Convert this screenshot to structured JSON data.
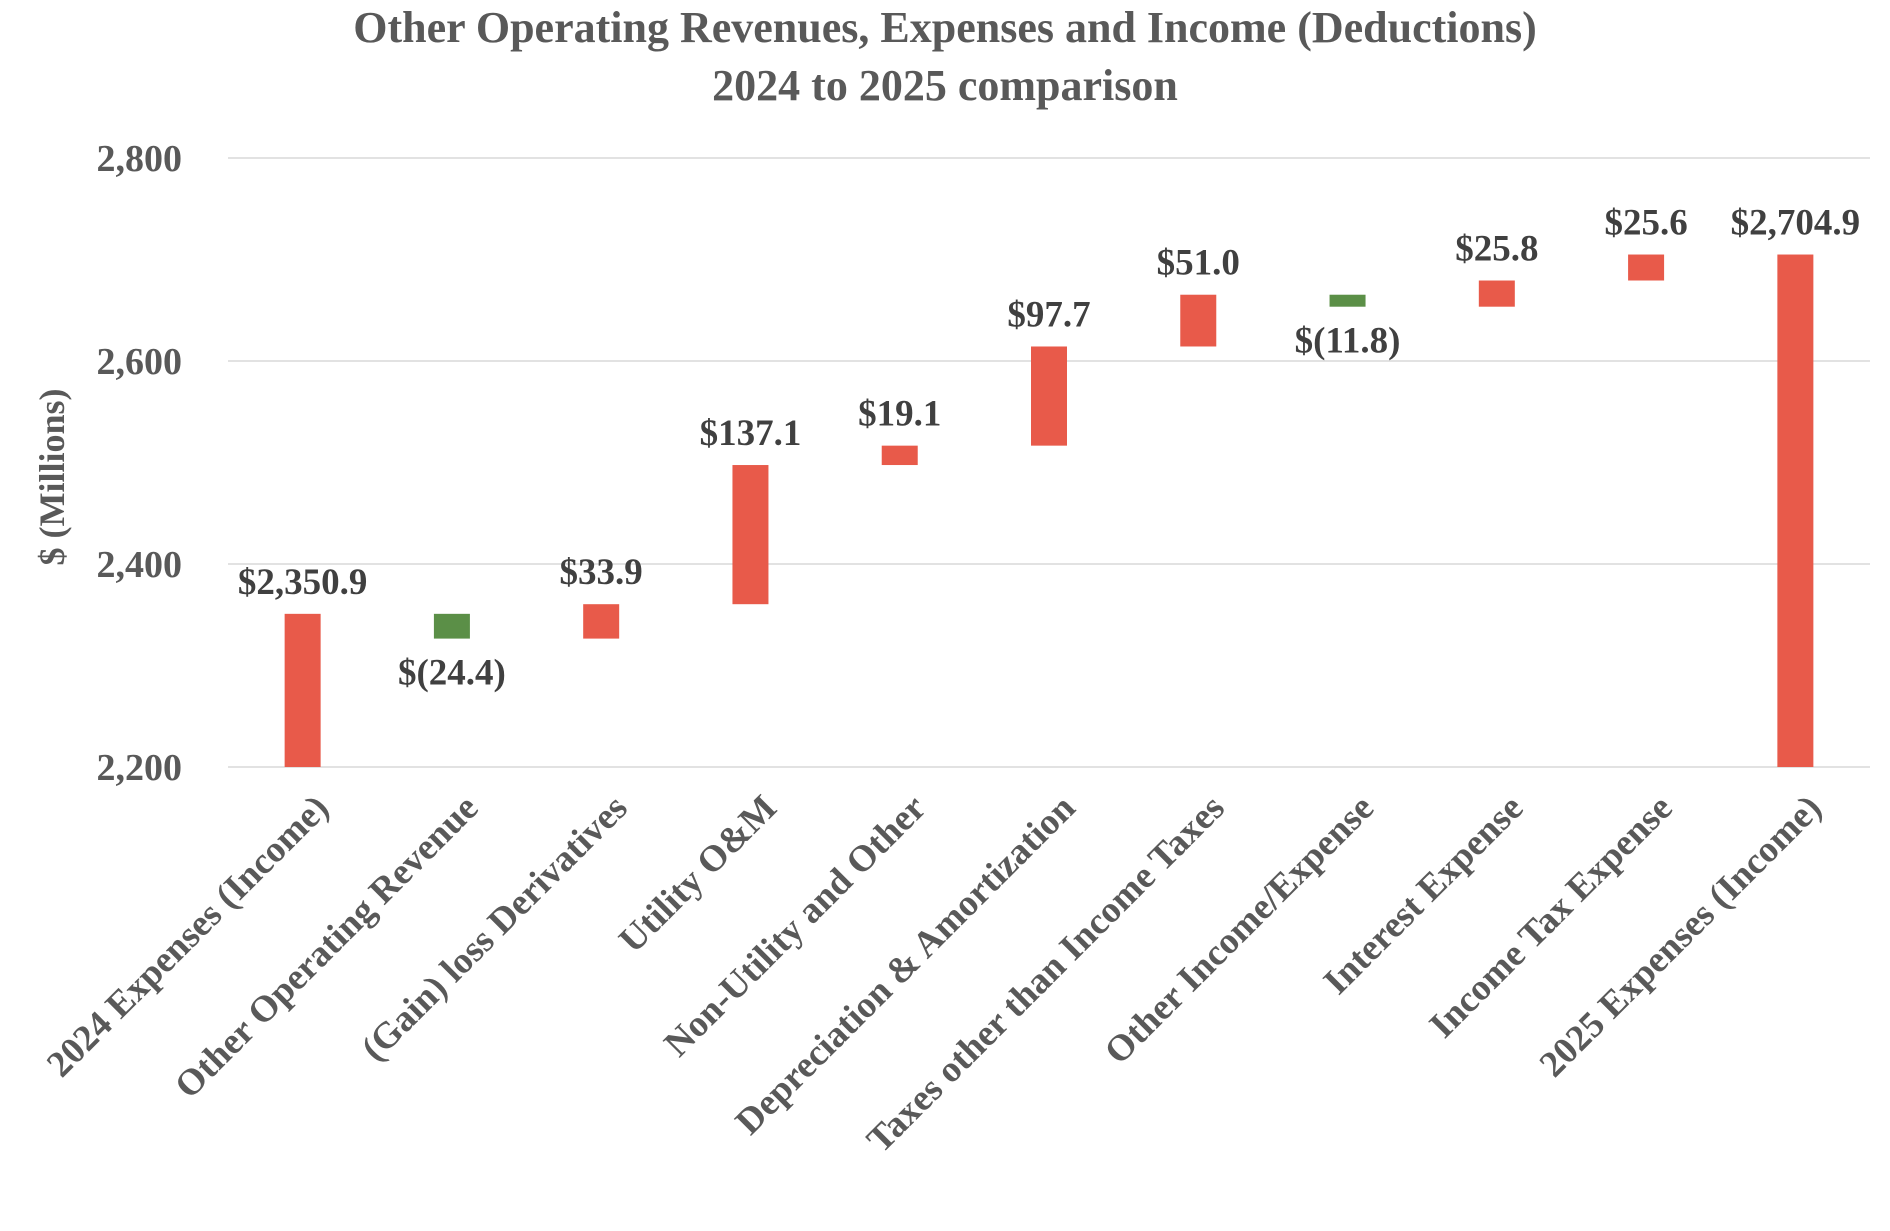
{
  "chart_data": {
    "type": "bar",
    "subtype": "waterfall",
    "title": "Other Operating Revenues, Expenses and Income (Deductions)",
    "subtitle": "2024 to 2025 comparison",
    "ylabel": "$ (Millions)",
    "xlabel": "",
    "ylim": [
      2200,
      2800
    ],
    "yticks": [
      2200,
      2400,
      2600,
      2800
    ],
    "ytick_labels": [
      "2,200",
      "2,400",
      "2,600",
      "2,800"
    ],
    "grid": true,
    "legend": "none",
    "colors": {
      "increase": "#e85a4a",
      "decrease": "#5b8f47",
      "total": "#e85a4a"
    },
    "categories": [
      "2024 Expenses (Income)",
      "Other Operating Revenue",
      "(Gain) loss Derivatives",
      "Utility O&M",
      "Non-Utility and Other",
      "Depreciation & Amortization",
      "Taxes other than Income Taxes",
      "Other Income/Expense",
      "Interest Expense",
      "Income Tax Expense",
      "2025 Expenses (Income)"
    ],
    "values": [
      2350.9,
      -24.4,
      33.9,
      137.1,
      19.1,
      97.7,
      51.0,
      -11.8,
      25.8,
      25.6,
      2704.9
    ],
    "kinds": [
      "total",
      "delta",
      "delta",
      "delta",
      "delta",
      "delta",
      "delta",
      "delta",
      "delta",
      "delta",
      "total"
    ],
    "data_labels": [
      "$2,350.9",
      "$(24.4)",
      "$33.9",
      "$137.1",
      "$19.1",
      "$97.7",
      "$51.0",
      "$(11.8)",
      "$25.8",
      "$25.6",
      "$2,704.9"
    ]
  }
}
